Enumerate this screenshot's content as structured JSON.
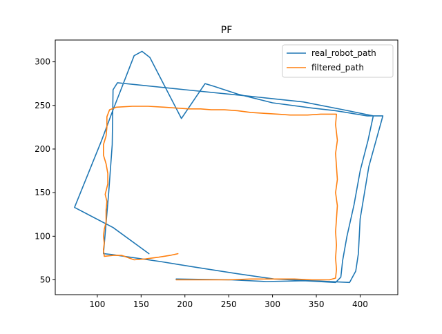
{
  "chart_data": {
    "type": "line",
    "title": "PF",
    "xlabel": "",
    "ylabel": "",
    "xlim": [
      52,
      443
    ],
    "ylim": [
      33,
      325
    ],
    "xticks": [
      100,
      150,
      200,
      250,
      300,
      350,
      400
    ],
    "yticks": [
      50,
      100,
      150,
      200,
      250,
      300
    ],
    "grid": false,
    "legend_position": "top-right",
    "series": [
      {
        "name": "real_robot_path",
        "color": "#1f77b4",
        "points": [
          [
            159,
            80
          ],
          [
            118,
            110
          ],
          [
            74,
            133
          ],
          [
            105,
            210
          ],
          [
            118,
            245
          ],
          [
            127,
            268
          ],
          [
            142,
            307
          ],
          [
            151,
            312
          ],
          [
            160,
            305
          ],
          [
            196,
            235
          ],
          [
            223,
            275
          ],
          [
            233,
            272
          ],
          [
            260,
            263
          ],
          [
            300,
            253
          ],
          [
            345,
            247
          ],
          [
            372,
            244
          ],
          [
            408,
            238
          ],
          [
            426,
            238
          ],
          [
            410,
            180
          ],
          [
            400,
            120
          ],
          [
            398,
            80
          ],
          [
            395,
            60
          ],
          [
            388,
            47
          ],
          [
            345,
            49
          ],
          [
            302,
            51
          ],
          [
            260,
            57
          ],
          [
            215,
            64
          ],
          [
            172,
            71
          ],
          [
            117,
            79
          ],
          [
            107,
            80
          ],
          [
            113,
            150
          ],
          [
            117,
            205
          ],
          [
            118,
            268
          ],
          [
            123,
            276
          ],
          [
            200,
            268
          ],
          [
            270,
            261
          ],
          [
            335,
            254
          ],
          [
            381,
            245
          ],
          [
            415,
            238
          ],
          [
            409,
            210
          ],
          [
            400,
            175
          ],
          [
            393,
            136
          ],
          [
            385,
            100
          ],
          [
            380,
            72
          ],
          [
            378,
            53
          ],
          [
            372,
            47
          ],
          [
            336,
            49
          ],
          [
            293,
            48
          ],
          [
            253,
            50
          ],
          [
            190,
            51
          ]
        ]
      },
      {
        "name": "filtered_path",
        "color": "#ff7f0e",
        "points": [
          [
            192,
            80
          ],
          [
            183,
            78
          ],
          [
            170,
            76
          ],
          [
            155,
            74
          ],
          [
            142,
            73
          ],
          [
            128,
            78
          ],
          [
            118,
            78
          ],
          [
            108,
            77
          ],
          [
            107,
            85
          ],
          [
            108,
            92
          ],
          [
            107,
            100
          ],
          [
            108,
            108
          ],
          [
            110,
            116
          ],
          [
            110,
            130
          ],
          [
            111,
            140
          ],
          [
            109,
            148
          ],
          [
            112,
            160
          ],
          [
            112,
            172
          ],
          [
            110,
            183
          ],
          [
            107,
            193
          ],
          [
            107,
            205
          ],
          [
            110,
            215
          ],
          [
            111,
            225
          ],
          [
            111,
            237
          ],
          [
            114,
            245
          ],
          [
            122,
            248
          ],
          [
            140,
            249
          ],
          [
            158,
            249
          ],
          [
            176,
            248
          ],
          [
            190,
            247
          ],
          [
            205,
            246
          ],
          [
            218,
            246
          ],
          [
            230,
            245
          ],
          [
            245,
            245
          ],
          [
            260,
            244
          ],
          [
            275,
            242
          ],
          [
            290,
            241
          ],
          [
            306,
            240
          ],
          [
            320,
            239
          ],
          [
            340,
            239
          ],
          [
            355,
            240
          ],
          [
            366,
            240
          ],
          [
            373,
            240
          ],
          [
            372,
            228
          ],
          [
            374,
            210
          ],
          [
            372,
            195
          ],
          [
            373,
            180
          ],
          [
            374,
            165
          ],
          [
            372,
            150
          ],
          [
            374,
            135
          ],
          [
            373,
            120
          ],
          [
            372,
            105
          ],
          [
            373,
            90
          ],
          [
            372,
            75
          ],
          [
            373,
            62
          ],
          [
            372,
            52
          ],
          [
            365,
            50
          ],
          [
            345,
            50
          ],
          [
            325,
            51
          ],
          [
            300,
            51
          ],
          [
            275,
            51
          ],
          [
            250,
            50
          ],
          [
            215,
            50
          ],
          [
            190,
            50
          ]
        ]
      }
    ]
  }
}
